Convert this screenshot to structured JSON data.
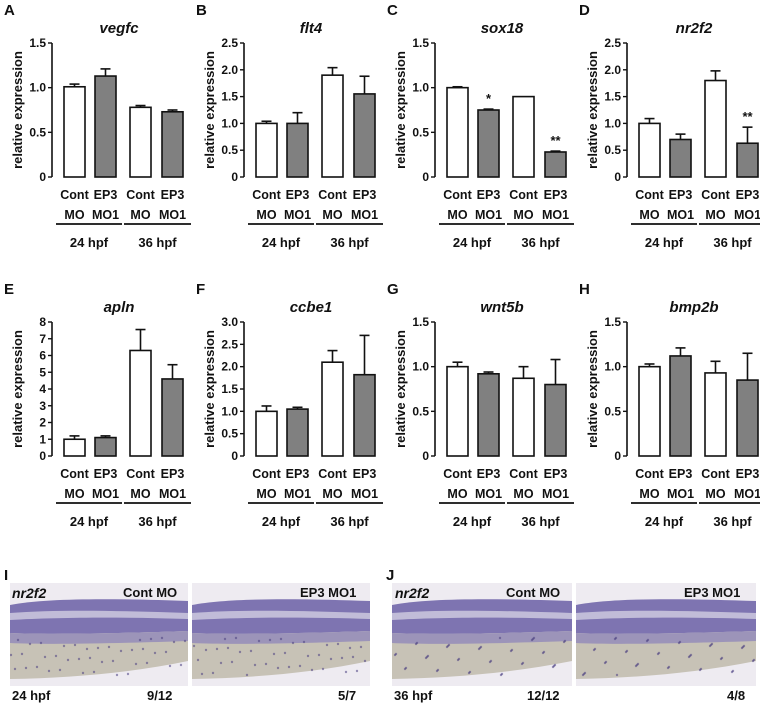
{
  "figure": {
    "y_axis_label": "relative expression",
    "categories": [
      {
        "line1": "Cont",
        "line2": "MO"
      },
      {
        "line1": "EP3",
        "line2": "MO1"
      },
      {
        "line1": "Cont",
        "line2": "MO"
      },
      {
        "line1": "EP3",
        "line2": "MO1"
      }
    ],
    "groups": [
      "24 hpf",
      "36 hpf"
    ],
    "colors": {
      "cont_bar": "#ffffff",
      "ep3_bar": "#808080",
      "axis": "#111111"
    }
  },
  "chart_data": [
    {
      "panel": "A",
      "title": "vegfc",
      "type": "bar",
      "ylim": [
        0,
        1.5
      ],
      "yticks": [
        "0",
        "0.5",
        "1.0",
        "1.5"
      ],
      "values": [
        1.01,
        1.13,
        0.78,
        0.73
      ],
      "errors": [
        0.03,
        0.08,
        0.02,
        0.02
      ],
      "sig": [
        "",
        "",
        "",
        ""
      ]
    },
    {
      "panel": "B",
      "title": "flt4",
      "type": "bar",
      "ylim": [
        0,
        2.5
      ],
      "yticks": [
        "0",
        "0.5",
        "1.0",
        "1.5",
        "2.0",
        "2.5"
      ],
      "values": [
        1.0,
        1.0,
        1.9,
        1.55
      ],
      "errors": [
        0.04,
        0.2,
        0.14,
        0.33
      ],
      "sig": [
        "",
        "",
        "",
        ""
      ]
    },
    {
      "panel": "C",
      "title": "sox18",
      "type": "bar",
      "ylim": [
        0,
        1.5
      ],
      "yticks": [
        "0",
        "0.5",
        "1.0",
        "1.5"
      ],
      "values": [
        1.0,
        0.75,
        0.9,
        0.28
      ],
      "errors": [
        0.01,
        0.01,
        0.0,
        0.01
      ],
      "sig": [
        "",
        "*",
        "",
        "**"
      ]
    },
    {
      "panel": "D",
      "title": "nr2f2",
      "type": "bar",
      "ylim": [
        0,
        2.5
      ],
      "yticks": [
        "0",
        "0.5",
        "1.0",
        "1.5",
        "2.0",
        "2.5"
      ],
      "values": [
        1.0,
        0.7,
        1.8,
        0.63
      ],
      "errors": [
        0.09,
        0.1,
        0.18,
        0.3
      ],
      "sig": [
        "",
        "",
        "",
        "**"
      ]
    },
    {
      "panel": "E",
      "title": "apln",
      "type": "bar",
      "ylim": [
        0,
        8
      ],
      "yticks": [
        "0",
        "1",
        "2",
        "3",
        "4",
        "5",
        "6",
        "7",
        "8"
      ],
      "values": [
        1.0,
        1.1,
        6.3,
        4.6
      ],
      "errors": [
        0.2,
        0.1,
        1.25,
        0.85
      ],
      "sig": [
        "",
        "",
        "",
        ""
      ]
    },
    {
      "panel": "F",
      "title": "ccbe1",
      "type": "bar",
      "ylim": [
        0,
        3.0
      ],
      "yticks": [
        "0",
        "0.5",
        "1.0",
        "1.5",
        "2.0",
        "2.5",
        "3.0"
      ],
      "values": [
        1.0,
        1.05,
        2.1,
        1.82
      ],
      "errors": [
        0.12,
        0.04,
        0.26,
        0.88
      ],
      "sig": [
        "",
        "",
        "",
        ""
      ]
    },
    {
      "panel": "G",
      "title": "wnt5b",
      "type": "bar",
      "ylim": [
        0,
        1.5
      ],
      "yticks": [
        "0",
        "0.5",
        "1.0",
        "1.5"
      ],
      "values": [
        1.0,
        0.92,
        0.87,
        0.8
      ],
      "errors": [
        0.05,
        0.02,
        0.13,
        0.28
      ],
      "sig": [
        "",
        "",
        "",
        ""
      ]
    },
    {
      "panel": "H",
      "title": "bmp2b",
      "type": "bar",
      "ylim": [
        0,
        1.5
      ],
      "yticks": [
        "0",
        "0.5",
        "1.0",
        "1.5"
      ],
      "values": [
        1.0,
        1.12,
        0.93,
        0.85
      ],
      "errors": [
        0.03,
        0.09,
        0.13,
        0.3
      ],
      "sig": [
        "",
        "",
        "",
        ""
      ]
    }
  ],
  "ish": [
    {
      "panel": "I",
      "gene": "nr2f2",
      "stage": "24 hpf",
      "left": {
        "condition": "Cont MO",
        "count": "9/12"
      },
      "right": {
        "condition": "EP3 MO1",
        "count": "5/7"
      }
    },
    {
      "panel": "J",
      "gene": "nr2f2",
      "stage": "36 hpf",
      "left": {
        "condition": "Cont MO",
        "count": "12/12"
      },
      "right": {
        "condition": "EP3 MO1",
        "count": "4/8"
      }
    }
  ]
}
